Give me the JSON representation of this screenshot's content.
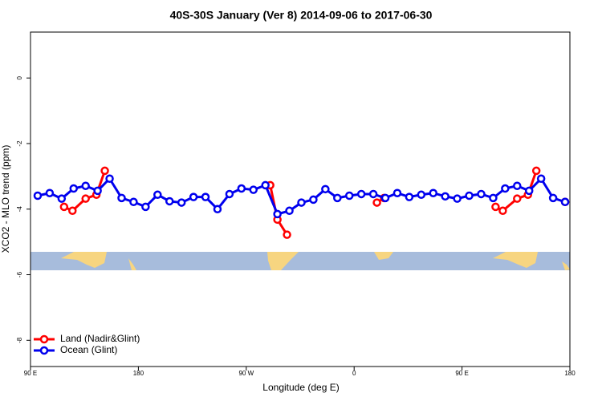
{
  "chart_data": {
    "type": "line",
    "title": "40S-30S January (Ver 8)   2014-09-06 to 2017-06-30",
    "x_label": "Longitude (deg E)",
    "y_label": "XCO2 - MLO trend (ppm)",
    "xlim": [
      90,
      540
    ],
    "xticks": [
      {
        "value": 90,
        "label": "90 E"
      },
      {
        "value": 180,
        "label": "180"
      },
      {
        "value": 270,
        "label": "90 W"
      },
      {
        "value": 360,
        "label": "0"
      },
      {
        "value": 450,
        "label": "90 E"
      },
      {
        "value": 540,
        "label": "180"
      }
    ],
    "ylim": [
      -8.8,
      1.4
    ],
    "yticks": [
      0,
      -2,
      -4,
      -6,
      -8
    ],
    "legend": "bottom-left",
    "series": [
      {
        "name": "Land (Nadir&Glint)",
        "color": "#ff0000",
        "x": [
          118,
          125,
          136,
          145,
          152,
          null,
          290,
          296,
          304,
          null,
          379,
          385,
          null,
          478,
          484,
          496,
          505,
          512,
          null,
          536
        ],
        "values": [
          -3.93,
          -4.05,
          -3.68,
          -3.56,
          -2.83,
          null,
          -3.27,
          -4.32,
          -4.78,
          null,
          -3.8,
          -3.66,
          null,
          -3.93,
          -4.05,
          -3.68,
          -3.56,
          -2.83,
          null,
          -3.78
        ]
      },
      {
        "name": "Ocean (Glint)",
        "color": "#0000ee",
        "x": [
          96,
          106,
          116,
          126,
          136,
          146,
          156,
          166,
          176,
          186,
          196,
          206,
          216,
          226,
          236,
          246,
          256,
          266,
          276,
          286,
          296,
          306,
          316,
          326,
          336,
          346,
          356,
          366,
          376,
          386,
          396,
          406,
          416,
          426,
          436,
          446,
          456,
          466,
          476,
          486,
          496,
          506,
          516,
          526,
          536
        ],
        "values": [
          -3.59,
          -3.51,
          -3.68,
          -3.37,
          -3.29,
          -3.44,
          -3.07,
          -3.66,
          -3.78,
          -3.93,
          -3.56,
          -3.76,
          -3.8,
          -3.63,
          -3.63,
          -4.0,
          -3.54,
          -3.37,
          -3.41,
          -3.27,
          -4.15,
          -4.05,
          -3.8,
          -3.71,
          -3.39,
          -3.66,
          -3.59,
          -3.54,
          -3.54,
          -3.66,
          -3.51,
          -3.63,
          -3.56,
          -3.51,
          -3.61,
          -3.68,
          -3.59,
          -3.54,
          -3.66,
          -3.37,
          -3.29,
          -3.44,
          -3.07,
          -3.66,
          -3.78
        ]
      }
    ]
  }
}
